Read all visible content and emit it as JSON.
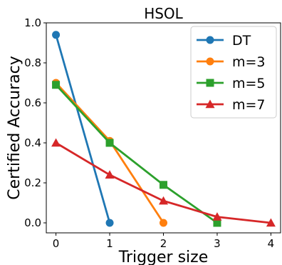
{
  "chart_data": {
    "type": "line",
    "title": "HSOL",
    "xlabel": "Trigger size",
    "ylabel": "Certified Accuracy",
    "xlim": [
      -0.18,
      4.18
    ],
    "ylim": [
      -0.05,
      1.0
    ],
    "xticks": [
      0,
      1,
      2,
      3,
      4
    ],
    "yticks": [
      0.0,
      0.2,
      0.4,
      0.6,
      0.8,
      1.0
    ],
    "xtick_labels": [
      "0",
      "1",
      "2",
      "3",
      "4"
    ],
    "ytick_labels": [
      "0.0",
      "0.2",
      "0.4",
      "0.6",
      "0.8",
      "1.0"
    ],
    "grid": false,
    "legend_position": "top-right",
    "series": [
      {
        "name": "DT",
        "color": "#1f77b4",
        "marker": "circle",
        "x": [
          0,
          1
        ],
        "y": [
          0.94,
          0.0
        ]
      },
      {
        "name": "m=3",
        "color": "#ff7f0e",
        "marker": "circle",
        "x": [
          0,
          1,
          2
        ],
        "y": [
          0.7,
          0.41,
          0.0
        ]
      },
      {
        "name": "m=5",
        "color": "#2ca02c",
        "marker": "square",
        "x": [
          0,
          1,
          2,
          3
        ],
        "y": [
          0.69,
          0.4,
          0.19,
          0.0
        ]
      },
      {
        "name": "m=7",
        "color": "#d62728",
        "marker": "triangle",
        "x": [
          0,
          1,
          2,
          3,
          4
        ],
        "y": [
          0.4,
          0.24,
          0.11,
          0.03,
          0.0
        ]
      }
    ]
  }
}
